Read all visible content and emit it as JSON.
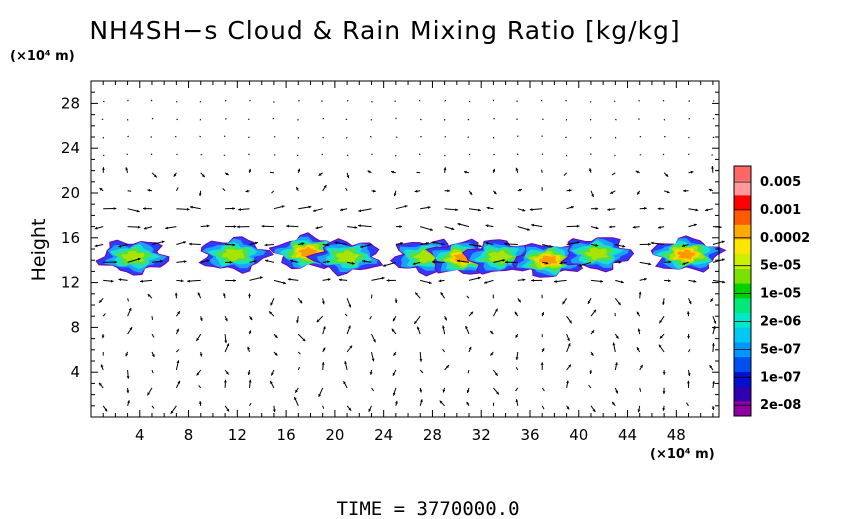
{
  "chart_data": {
    "type": "heatmap",
    "title": "NH4SH−s Cloud & Rain Mixing Ratio [kg/kg]",
    "xlabel": "",
    "x_unit": "(×10⁴ m)",
    "ylabel": "Height",
    "y_unit": "(×10⁴ m)",
    "xlim": [
      0,
      51.5
    ],
    "ylim": [
      0,
      30
    ],
    "x_ticks": [
      4,
      8,
      12,
      16,
      20,
      24,
      28,
      32,
      36,
      40,
      44,
      48
    ],
    "y_ticks": [
      4,
      8,
      12,
      16,
      20,
      24,
      28
    ],
    "grid": false,
    "colorbar": {
      "labels": [
        "0.005",
        "0.001",
        "0.0002",
        "5e-05",
        "1e-05",
        "2e-06",
        "5e-07",
        "1e-07",
        "2e-08"
      ],
      "colors": [
        "#ff6666",
        "#ff9999",
        "#ff0000",
        "#ff5a00",
        "#ffaa00",
        "#ffe600",
        "#c8f000",
        "#7ae000",
        "#00d000",
        "#00e87a",
        "#00e8c8",
        "#00c8f0",
        "#0096ff",
        "#0050f0",
        "#0010d0",
        "#3000b0",
        "#9000a0"
      ]
    },
    "cloud_cells": [
      {
        "x": 3.5,
        "y": 14.3,
        "peak": "5e-05"
      },
      {
        "x": 11.7,
        "y": 14.5,
        "peak": "5e-05"
      },
      {
        "x": 17.8,
        "y": 14.7,
        "peak": "0.0002"
      },
      {
        "x": 21.0,
        "y": 14.3,
        "peak": "5e-05"
      },
      {
        "x": 27.5,
        "y": 14.3,
        "peak": "5e-05"
      },
      {
        "x": 30.5,
        "y": 14.2,
        "peak": "0.0002"
      },
      {
        "x": 33.5,
        "y": 14.3,
        "peak": "5e-05"
      },
      {
        "x": 37.5,
        "y": 14.0,
        "peak": "0.0002"
      },
      {
        "x": 41.5,
        "y": 14.6,
        "peak": "5e-05"
      },
      {
        "x": 48.8,
        "y": 14.5,
        "peak": "0.0002"
      }
    ]
  },
  "time_label": "TIME  =  3770000.0"
}
